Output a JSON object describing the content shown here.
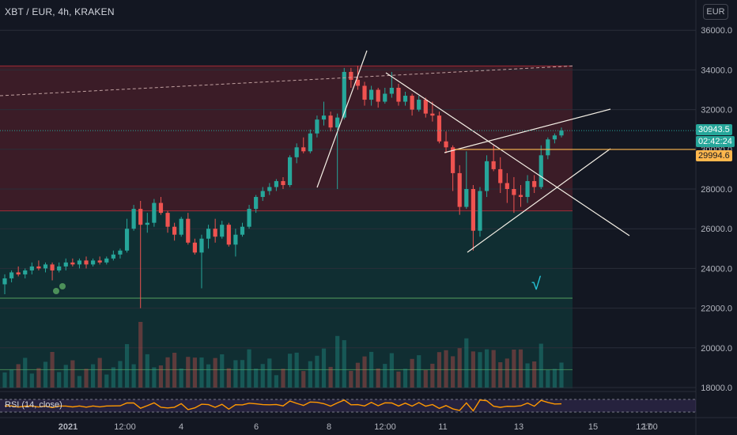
{
  "symbol_label": "XBT / EUR, 4h, KRAKEN",
  "currency_button": "EUR",
  "rsi_label": "RSI (14, close)",
  "price_tags": {
    "last_price": "30943.5",
    "countdown": "02:42:24",
    "level": "29994.6"
  },
  "colors": {
    "bg": "#131722",
    "up": "#26a69a",
    "down": "#ef5350",
    "red_zone": "#f23645",
    "green_zone": "#089981",
    "rsi_line": "#ff9800",
    "rsi_band": "#7e57c2",
    "level_line": "#ffb74d",
    "drawing": "#f5f0e6",
    "annotation": "#26c6da"
  },
  "annotation_text": "√",
  "chart_data": {
    "type": "candlestick",
    "ylim": [
      17400,
      37000
    ],
    "y_ticks": [
      "36000.0",
      "34000.0",
      "32000.0",
      "30000.0",
      "28000.0",
      "26000.0",
      "24000.0",
      "22000.0",
      "20000.0",
      "18000.0"
    ],
    "x_ticks": [
      "2021",
      "12:00",
      "4",
      "6",
      "8",
      "12:00",
      "11",
      "13",
      "15",
      "17",
      "12:00"
    ],
    "candles": [
      [
        23200,
        23700,
        22700,
        23500
      ],
      [
        23500,
        23900,
        23300,
        23800
      ],
      [
        23800,
        24100,
        23600,
        23700
      ],
      [
        23700,
        24000,
        23500,
        23900
      ],
      [
        23900,
        24300,
        23700,
        24100
      ],
      [
        24100,
        24400,
        23900,
        24000
      ],
      [
        24000,
        24300,
        23800,
        24200
      ],
      [
        24200,
        24300,
        23400,
        23900
      ],
      [
        23900,
        24300,
        23800,
        24100
      ],
      [
        24100,
        24500,
        23900,
        24300
      ],
      [
        24300,
        24500,
        24100,
        24200
      ],
      [
        24200,
        24500,
        24000,
        24400
      ],
      [
        24400,
        24600,
        24000,
        24200
      ],
      [
        24200,
        24500,
        24100,
        24400
      ],
      [
        24400,
        24600,
        24200,
        24300
      ],
      [
        24300,
        24600,
        24200,
        24500
      ],
      [
        24500,
        24900,
        24400,
        24700
      ],
      [
        24700,
        25000,
        24500,
        24900
      ],
      [
        24900,
        26500,
        24800,
        26000
      ],
      [
        26000,
        27200,
        25900,
        27000
      ],
      [
        27000,
        27400,
        22000,
        26200
      ],
      [
        26200,
        26800,
        25800,
        26300
      ],
      [
        26300,
        27500,
        26100,
        27300
      ],
      [
        27300,
        27600,
        26700,
        26800
      ],
      [
        26800,
        26900,
        25800,
        26100
      ],
      [
        26100,
        26300,
        25400,
        25700
      ],
      [
        25700,
        26600,
        25600,
        26500
      ],
      [
        26500,
        26800,
        25200,
        25300
      ],
      [
        25300,
        25500,
        24700,
        24800
      ],
      [
        24800,
        25700,
        23000,
        25500
      ],
      [
        25500,
        26200,
        25000,
        26000
      ],
      [
        26000,
        26500,
        25300,
        25600
      ],
      [
        25600,
        26400,
        25500,
        26200
      ],
      [
        26200,
        26300,
        25100,
        25200
      ],
      [
        25200,
        26000,
        24600,
        25700
      ],
      [
        25700,
        26300,
        25600,
        26100
      ],
      [
        26100,
        27200,
        26000,
        27000
      ],
      [
        27000,
        27700,
        26800,
        27600
      ],
      [
        27600,
        28100,
        27400,
        27900
      ],
      [
        27900,
        28300,
        27700,
        28100
      ],
      [
        28100,
        28500,
        27900,
        28400
      ],
      [
        28400,
        28600,
        28000,
        28200
      ],
      [
        28200,
        29700,
        28100,
        29600
      ],
      [
        29600,
        30300,
        29300,
        30100
      ],
      [
        30100,
        30600,
        29800,
        29900
      ],
      [
        29900,
        31000,
        29800,
        30800
      ],
      [
        30800,
        31700,
        30600,
        31500
      ],
      [
        31500,
        32400,
        31200,
        31700
      ],
      [
        31700,
        31900,
        30900,
        31100
      ],
      [
        31100,
        31800,
        28000,
        31600
      ],
      [
        31600,
        34100,
        31500,
        33900
      ],
      [
        33900,
        34100,
        33100,
        33500
      ],
      [
        33500,
        34200,
        33000,
        33200
      ],
      [
        33200,
        33400,
        32200,
        32500
      ],
      [
        32500,
        33200,
        32200,
        33000
      ],
      [
        33000,
        33100,
        32100,
        32400
      ],
      [
        32400,
        33100,
        32300,
        32800
      ],
      [
        32800,
        33900,
        32600,
        33100
      ],
      [
        33100,
        33300,
        32200,
        32400
      ],
      [
        32400,
        32900,
        32200,
        32700
      ],
      [
        32700,
        32800,
        31700,
        32000
      ],
      [
        32000,
        32700,
        31900,
        32500
      ],
      [
        32500,
        32600,
        31600,
        31800
      ],
      [
        31800,
        32400,
        31400,
        31700
      ],
      [
        31700,
        31900,
        30300,
        30400
      ],
      [
        30400,
        30900,
        29800,
        30100
      ],
      [
        30100,
        30200,
        27900,
        28800
      ],
      [
        28800,
        29200,
        26700,
        27100
      ],
      [
        27100,
        29900,
        27000,
        28000
      ],
      [
        28000,
        28200,
        24900,
        25900
      ],
      [
        25900,
        28100,
        25600,
        27900
      ],
      [
        27900,
        29700,
        27600,
        29400
      ],
      [
        29400,
        30200,
        28900,
        29000
      ],
      [
        29000,
        29600,
        27800,
        28300
      ],
      [
        28300,
        28800,
        27300,
        28000
      ],
      [
        28000,
        28600,
        26800,
        27700
      ],
      [
        27700,
        28200,
        27100,
        27600
      ],
      [
        27600,
        28700,
        27300,
        28400
      ],
      [
        28400,
        28700,
        27800,
        28100
      ],
      [
        28100,
        30200,
        28000,
        29700
      ],
      [
        29700,
        30600,
        29500,
        30500
      ],
      [
        30500,
        30800,
        30300,
        30700
      ],
      [
        30700,
        31100,
        30600,
        30943
      ]
    ]
  }
}
